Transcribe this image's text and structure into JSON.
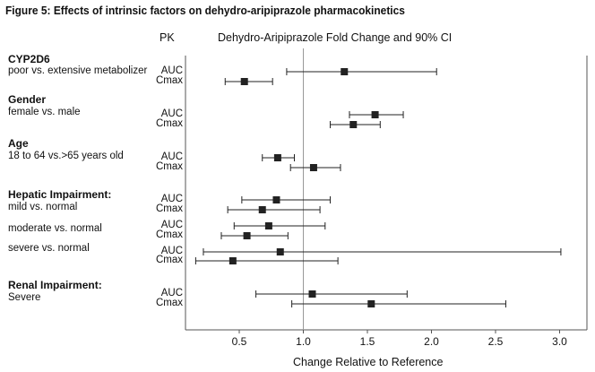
{
  "title": "Figure 5:  Effects of intrinsic factors on dehydro-aripiprazole pharmacokinetics",
  "header": {
    "pk_label": "PK",
    "chart_label": "Dehydro-Aripiprazole Fold Change and 90% CI"
  },
  "groups": [
    {
      "name": "CYP2D6",
      "subgroups": [
        "poor vs. extensive metabolizer"
      ]
    },
    {
      "name": "Gender",
      "subgroups": [
        "female vs. male"
      ]
    },
    {
      "name": "Age",
      "subgroups": [
        "18 to 64 vs.>65 years old"
      ]
    },
    {
      "name": "Hepatic Impairment:",
      "subgroups": [
        "mild vs. normal",
        "moderate vs. normal",
        "severe vs. normal"
      ]
    },
    {
      "name": "Renal Impairment:",
      "subgroups": [
        "Severe"
      ]
    }
  ],
  "chart_data": {
    "type": "scatter",
    "title": "Figure 5:  Effects of intrinsic factors on dehydro-aripiprazole pharmacokinetics",
    "xlabel": "Change Relative to Reference",
    "ylabel": "",
    "xlim": [
      0.1,
      3.2
    ],
    "xticks": [
      "0.5",
      "1.0",
      "1.5",
      "2.0",
      "2.5",
      "3.0"
    ],
    "reference_line": 1.0,
    "grid": false,
    "rows": [
      {
        "group": "CYP2D6",
        "comparison": "poor vs. extensive metabolizer",
        "pk": "AUC",
        "estimate": 1.32,
        "ci": [
          0.87,
          2.04
        ]
      },
      {
        "group": "CYP2D6",
        "comparison": "poor vs. extensive metabolizer",
        "pk": "Cmax",
        "estimate": 0.54,
        "ci": [
          0.39,
          0.76
        ]
      },
      {
        "group": "Gender",
        "comparison": "female vs. male",
        "pk": "AUC",
        "estimate": 1.56,
        "ci": [
          1.36,
          1.78
        ]
      },
      {
        "group": "Gender",
        "comparison": "female vs. male",
        "pk": "Cmax",
        "estimate": 1.39,
        "ci": [
          1.21,
          1.6
        ]
      },
      {
        "group": "Age",
        "comparison": "18 to 64 vs.>65 years old",
        "pk": "AUC",
        "estimate": 0.8,
        "ci": [
          0.68,
          0.93
        ]
      },
      {
        "group": "Age",
        "comparison": "18 to 64 vs.>65 years old",
        "pk": "Cmax",
        "estimate": 1.08,
        "ci": [
          0.9,
          1.29
        ]
      },
      {
        "group": "Hepatic Impairment:",
        "comparison": "mild vs. normal",
        "pk": "AUC",
        "estimate": 0.79,
        "ci": [
          0.52,
          1.21
        ]
      },
      {
        "group": "Hepatic Impairment:",
        "comparison": "mild vs. normal",
        "pk": "Cmax",
        "estimate": 0.68,
        "ci": [
          0.41,
          1.13
        ]
      },
      {
        "group": "Hepatic Impairment:",
        "comparison": "moderate vs. normal",
        "pk": "AUC",
        "estimate": 0.73,
        "ci": [
          0.46,
          1.17
        ]
      },
      {
        "group": "Hepatic Impairment:",
        "comparison": "moderate vs. normal",
        "pk": "Cmax",
        "estimate": 0.56,
        "ci": [
          0.36,
          0.88
        ]
      },
      {
        "group": "Hepatic Impairment:",
        "comparison": "severe vs. normal",
        "pk": "AUC",
        "estimate": 0.82,
        "ci": [
          0.22,
          3.01
        ]
      },
      {
        "group": "Hepatic Impairment:",
        "comparison": "severe vs. normal",
        "pk": "Cmax",
        "estimate": 0.45,
        "ci": [
          0.16,
          1.27
        ]
      },
      {
        "group": "Renal Impairment:",
        "comparison": "Severe",
        "pk": "AUC",
        "estimate": 1.07,
        "ci": [
          0.63,
          1.81
        ]
      },
      {
        "group": "Renal Impairment:",
        "comparison": "Severe",
        "pk": "Cmax",
        "estimate": 1.53,
        "ci": [
          0.91,
          2.58
        ]
      }
    ]
  }
}
